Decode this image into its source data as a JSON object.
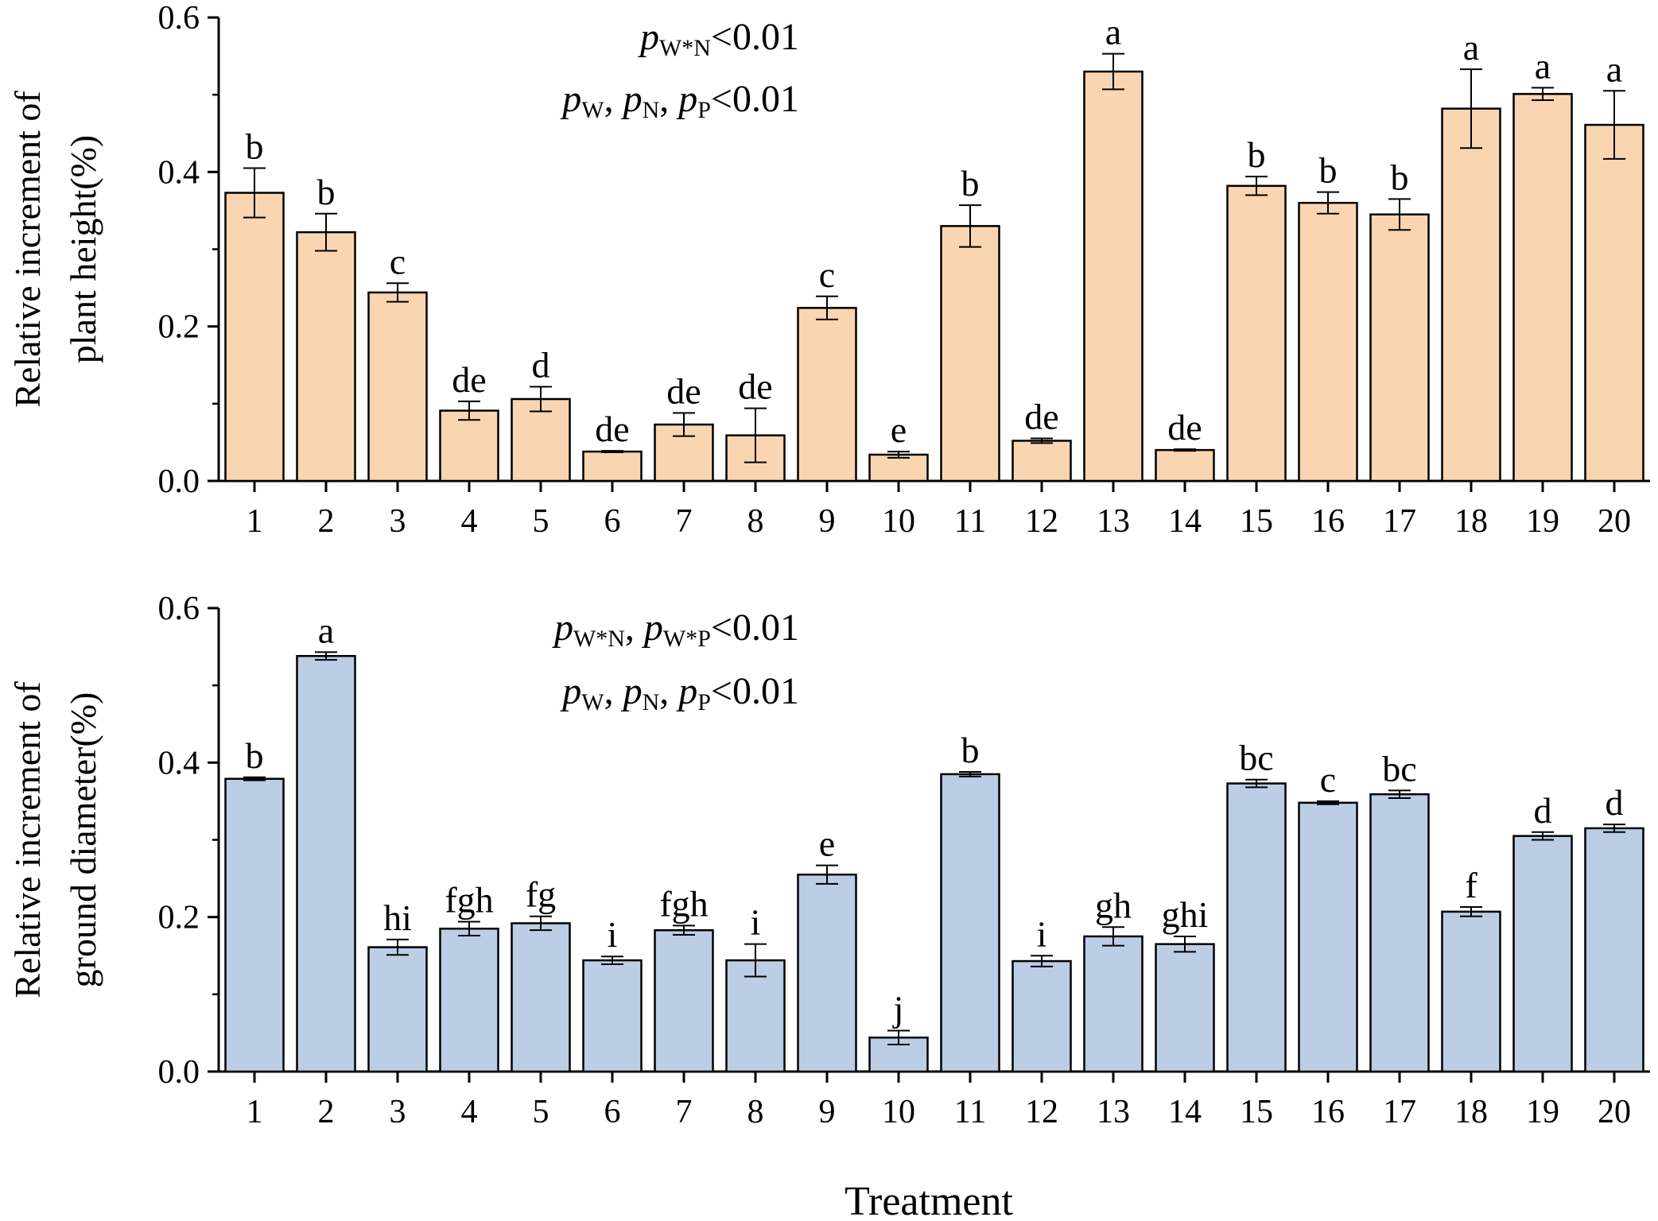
{
  "figure": {
    "xlabel": "Treatment"
  },
  "chart_data": [
    {
      "type": "bar",
      "title": "",
      "xlabel": "",
      "ylabel": [
        "Relative increment of",
        "plant height(%)"
      ],
      "ylim": [
        0,
        0.6
      ],
      "yticks": [
        "0.0",
        "0.2",
        "0.4",
        "0.6"
      ],
      "categories": [
        "1",
        "2",
        "3",
        "4",
        "5",
        "6",
        "7",
        "8",
        "9",
        "10",
        "11",
        "12",
        "13",
        "14",
        "15",
        "16",
        "17",
        "18",
        "19",
        "20"
      ],
      "values": [
        0.373,
        0.322,
        0.244,
        0.091,
        0.106,
        0.038,
        0.073,
        0.059,
        0.224,
        0.034,
        0.33,
        0.052,
        0.53,
        0.04,
        0.382,
        0.36,
        0.345,
        0.482,
        0.501,
        0.461
      ],
      "errors": [
        0.032,
        0.024,
        0.012,
        0.012,
        0.016,
        0.001,
        0.015,
        0.035,
        0.015,
        0.004,
        0.027,
        0.003,
        0.023,
        0.001,
        0.012,
        0.014,
        0.02,
        0.051,
        0.008,
        0.044
      ],
      "letters": [
        "b",
        "b",
        "c",
        "de",
        "d",
        "de",
        "de",
        "de",
        "c",
        "e",
        "b",
        "de",
        "a",
        "de",
        "b",
        "b",
        "b",
        "a",
        "a",
        "a"
      ],
      "bar_color": "#F9D5B1",
      "annotations": [
        [
          {
            "text": "p",
            "italic": true
          },
          {
            "text": "W*N",
            "sub": true
          },
          {
            "text": "<0.01"
          }
        ],
        [
          {
            "text": "p",
            "italic": true
          },
          {
            "text": "W",
            "sub": true
          },
          {
            "text": ",  "
          },
          {
            "text": "p",
            "italic": true
          },
          {
            "text": "N",
            "sub": true
          },
          {
            "text": ",  "
          },
          {
            "text": "p",
            "italic": true
          },
          {
            "text": "P",
            "sub": true
          },
          {
            "text": "<0.01"
          }
        ]
      ]
    },
    {
      "type": "bar",
      "title": "",
      "xlabel": "Treatment",
      "ylabel": [
        "Relative increment of",
        "ground diameter(%)"
      ],
      "ylim": [
        0,
        0.6
      ],
      "yticks": [
        "0.0",
        "0.2",
        "0.4",
        "0.6"
      ],
      "categories": [
        "1",
        "2",
        "3",
        "4",
        "5",
        "6",
        "7",
        "8",
        "9",
        "10",
        "11",
        "12",
        "13",
        "14",
        "15",
        "16",
        "17",
        "18",
        "19",
        "20"
      ],
      "values": [
        0.379,
        0.538,
        0.161,
        0.185,
        0.192,
        0.144,
        0.183,
        0.144,
        0.255,
        0.044,
        0.385,
        0.143,
        0.175,
        0.165,
        0.373,
        0.348,
        0.359,
        0.207,
        0.305,
        0.315
      ],
      "errors": [
        0.002,
        0.005,
        0.01,
        0.009,
        0.009,
        0.005,
        0.006,
        0.021,
        0.012,
        0.009,
        0.003,
        0.007,
        0.012,
        0.01,
        0.005,
        0.002,
        0.005,
        0.006,
        0.005,
        0.005
      ],
      "letters": [
        "b",
        "a",
        "hi",
        "fgh",
        "fg",
        "i",
        "fgh",
        "i",
        "e",
        "j",
        "b",
        "i",
        "gh",
        "ghi",
        "bc",
        "c",
        "bc",
        "f",
        "d",
        "d"
      ],
      "bar_color": "#BCCDE6",
      "annotations": [
        [
          {
            "text": "p",
            "italic": true
          },
          {
            "text": "W*N",
            "sub": true
          },
          {
            "text": ",  "
          },
          {
            "text": "p",
            "italic": true
          },
          {
            "text": "W*P",
            "sub": true
          },
          {
            "text": "<0.01"
          }
        ],
        [
          {
            "text": "p",
            "italic": true
          },
          {
            "text": "W",
            "sub": true
          },
          {
            "text": ",  "
          },
          {
            "text": "p",
            "italic": true
          },
          {
            "text": "N",
            "sub": true
          },
          {
            "text": ",  "
          },
          {
            "text": "p",
            "italic": true
          },
          {
            "text": "P",
            "sub": true
          },
          {
            "text": "<0.01"
          }
        ]
      ]
    }
  ]
}
